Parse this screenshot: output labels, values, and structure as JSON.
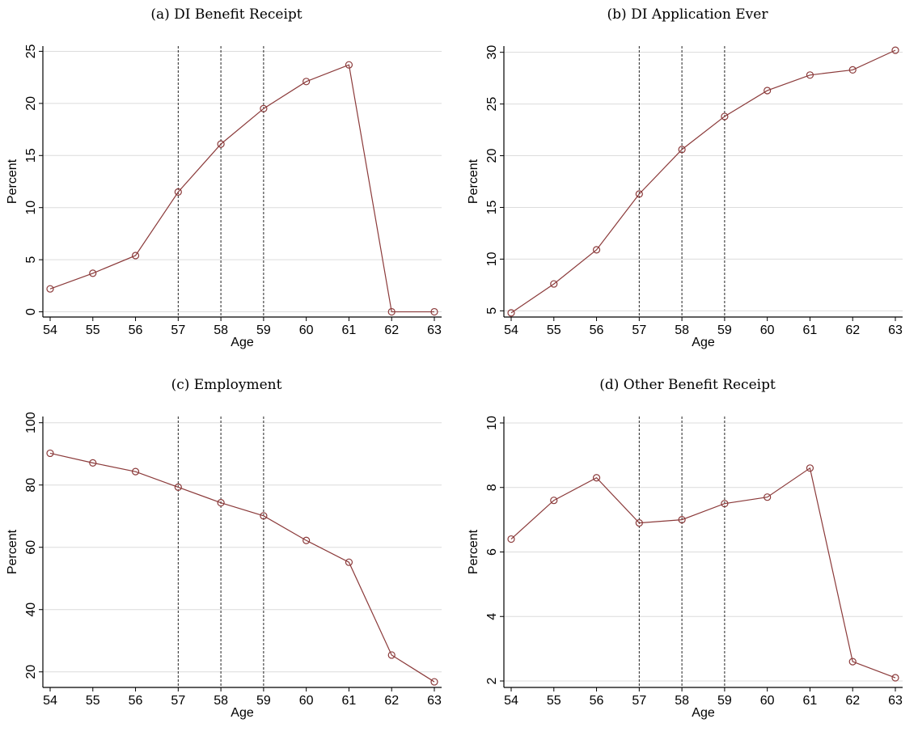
{
  "colors": {
    "series": "#8b3a3a",
    "grid": "#dcdcdc",
    "vline": "#222222"
  },
  "chart_data": [
    {
      "type": "line",
      "title": "(a) DI Benefit Receipt",
      "xlabel": "Age",
      "ylabel": "Percent",
      "x": [
        54,
        55,
        56,
        57,
        58,
        59,
        60,
        61,
        62,
        63
      ],
      "series": [
        {
          "values": [
            2.2,
            3.7,
            5.4,
            11.5,
            16.1,
            19.5,
            22.1,
            23.7,
            0.0,
            0.0
          ]
        }
      ],
      "xlim": [
        54,
        63
      ],
      "ylim": [
        -0.5,
        25.5
      ],
      "yticks": [
        0,
        5,
        10,
        15,
        20,
        25
      ],
      "vlines": [
        57,
        58,
        59
      ],
      "grid": true
    },
    {
      "type": "line",
      "title": "(b) DI Application Ever",
      "xlabel": "Age",
      "ylabel": "Percent",
      "x": [
        54,
        55,
        56,
        57,
        58,
        59,
        60,
        61,
        62,
        63
      ],
      "series": [
        {
          "values": [
            4.8,
            7.6,
            10.9,
            16.3,
            20.6,
            23.8,
            26.3,
            27.8,
            28.3,
            30.2
          ]
        }
      ],
      "xlim": [
        54,
        63
      ],
      "ylim": [
        4.4,
        30.6
      ],
      "yticks": [
        5,
        10,
        15,
        20,
        25,
        30
      ],
      "vlines": [
        57,
        58,
        59
      ],
      "grid": true
    },
    {
      "type": "line",
      "title": "(c) Employment",
      "xlabel": "Age",
      "ylabel": "Percent",
      "x": [
        54,
        55,
        56,
        57,
        58,
        59,
        60,
        61,
        62,
        63
      ],
      "series": [
        {
          "values": [
            90.2,
            87.1,
            84.3,
            79.3,
            74.3,
            70.1,
            62.2,
            55.2,
            25.4,
            16.8
          ]
        }
      ],
      "xlim": [
        54,
        63
      ],
      "ylim": [
        15,
        102
      ],
      "yticks": [
        20,
        40,
        60,
        80,
        100
      ],
      "vlines": [
        57,
        58,
        59
      ],
      "grid": true
    },
    {
      "type": "line",
      "title": "(d) Other Benefit Receipt",
      "xlabel": "Age",
      "ylabel": "Percent",
      "x": [
        54,
        55,
        56,
        57,
        58,
        59,
        60,
        61,
        62,
        63
      ],
      "series": [
        {
          "values": [
            6.4,
            7.6,
            8.3,
            6.9,
            7.0,
            7.5,
            7.7,
            8.6,
            2.6,
            2.1
          ]
        }
      ],
      "xlim": [
        54,
        63
      ],
      "ylim": [
        1.8,
        10.2
      ],
      "yticks": [
        2,
        4,
        6,
        8,
        10
      ],
      "vlines": [
        57,
        58,
        59
      ],
      "grid": true
    }
  ]
}
